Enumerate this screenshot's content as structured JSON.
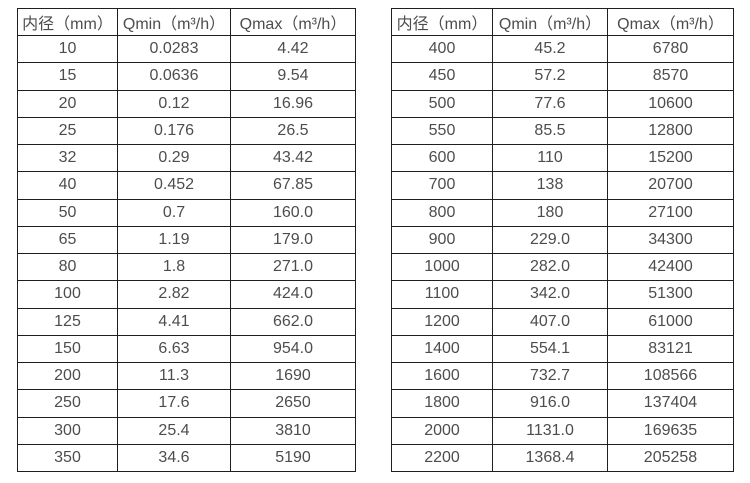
{
  "colors": {
    "background": "#ffffff",
    "border": "#1f1f1f",
    "text": "#4d4d4d"
  },
  "chart_data": [
    {
      "type": "table",
      "title": "",
      "columns": [
        "内径（mm）",
        "Qmin（m³/h）",
        "Qmax（m³/h）"
      ],
      "rows": [
        [
          "10",
          "0.0283",
          "4.42"
        ],
        [
          "15",
          "0.0636",
          "9.54"
        ],
        [
          "20",
          "0.12",
          "16.96"
        ],
        [
          "25",
          "0.176",
          "26.5"
        ],
        [
          "32",
          "0.29",
          "43.42"
        ],
        [
          "40",
          "0.452",
          "67.85"
        ],
        [
          "50",
          "0.7",
          "160.0"
        ],
        [
          "65",
          "1.19",
          "179.0"
        ],
        [
          "80",
          "1.8",
          "271.0"
        ],
        [
          "100",
          "2.82",
          "424.0"
        ],
        [
          "125",
          "4.41",
          "662.0"
        ],
        [
          "150",
          "6.63",
          "954.0"
        ],
        [
          "200",
          "11.3",
          "1690"
        ],
        [
          "250",
          "17.6",
          "2650"
        ],
        [
          "300",
          "25.4",
          "3810"
        ],
        [
          "350",
          "34.6",
          "5190"
        ]
      ]
    },
    {
      "type": "table",
      "title": "",
      "columns": [
        "内径（mm）",
        "Qmin（m³/h）",
        "Qmax（m³/h）"
      ],
      "rows": [
        [
          "400",
          "45.2",
          "6780"
        ],
        [
          "450",
          "57.2",
          "8570"
        ],
        [
          "500",
          "77.6",
          "10600"
        ],
        [
          "550",
          "85.5",
          "12800"
        ],
        [
          "600",
          "110",
          "15200"
        ],
        [
          "700",
          "138",
          "20700"
        ],
        [
          "800",
          "180",
          "27100"
        ],
        [
          "900",
          "229.0",
          "34300"
        ],
        [
          "1000",
          "282.0",
          "42400"
        ],
        [
          "1100",
          "342.0",
          "51300"
        ],
        [
          "1200",
          "407.0",
          "61000"
        ],
        [
          "1400",
          "554.1",
          "83121"
        ],
        [
          "1600",
          "732.7",
          "108566"
        ],
        [
          "1800",
          "916.0",
          "137404"
        ],
        [
          "2000",
          "1131.0",
          "169635"
        ],
        [
          "2200",
          "1368.4",
          "205258"
        ]
      ]
    }
  ]
}
